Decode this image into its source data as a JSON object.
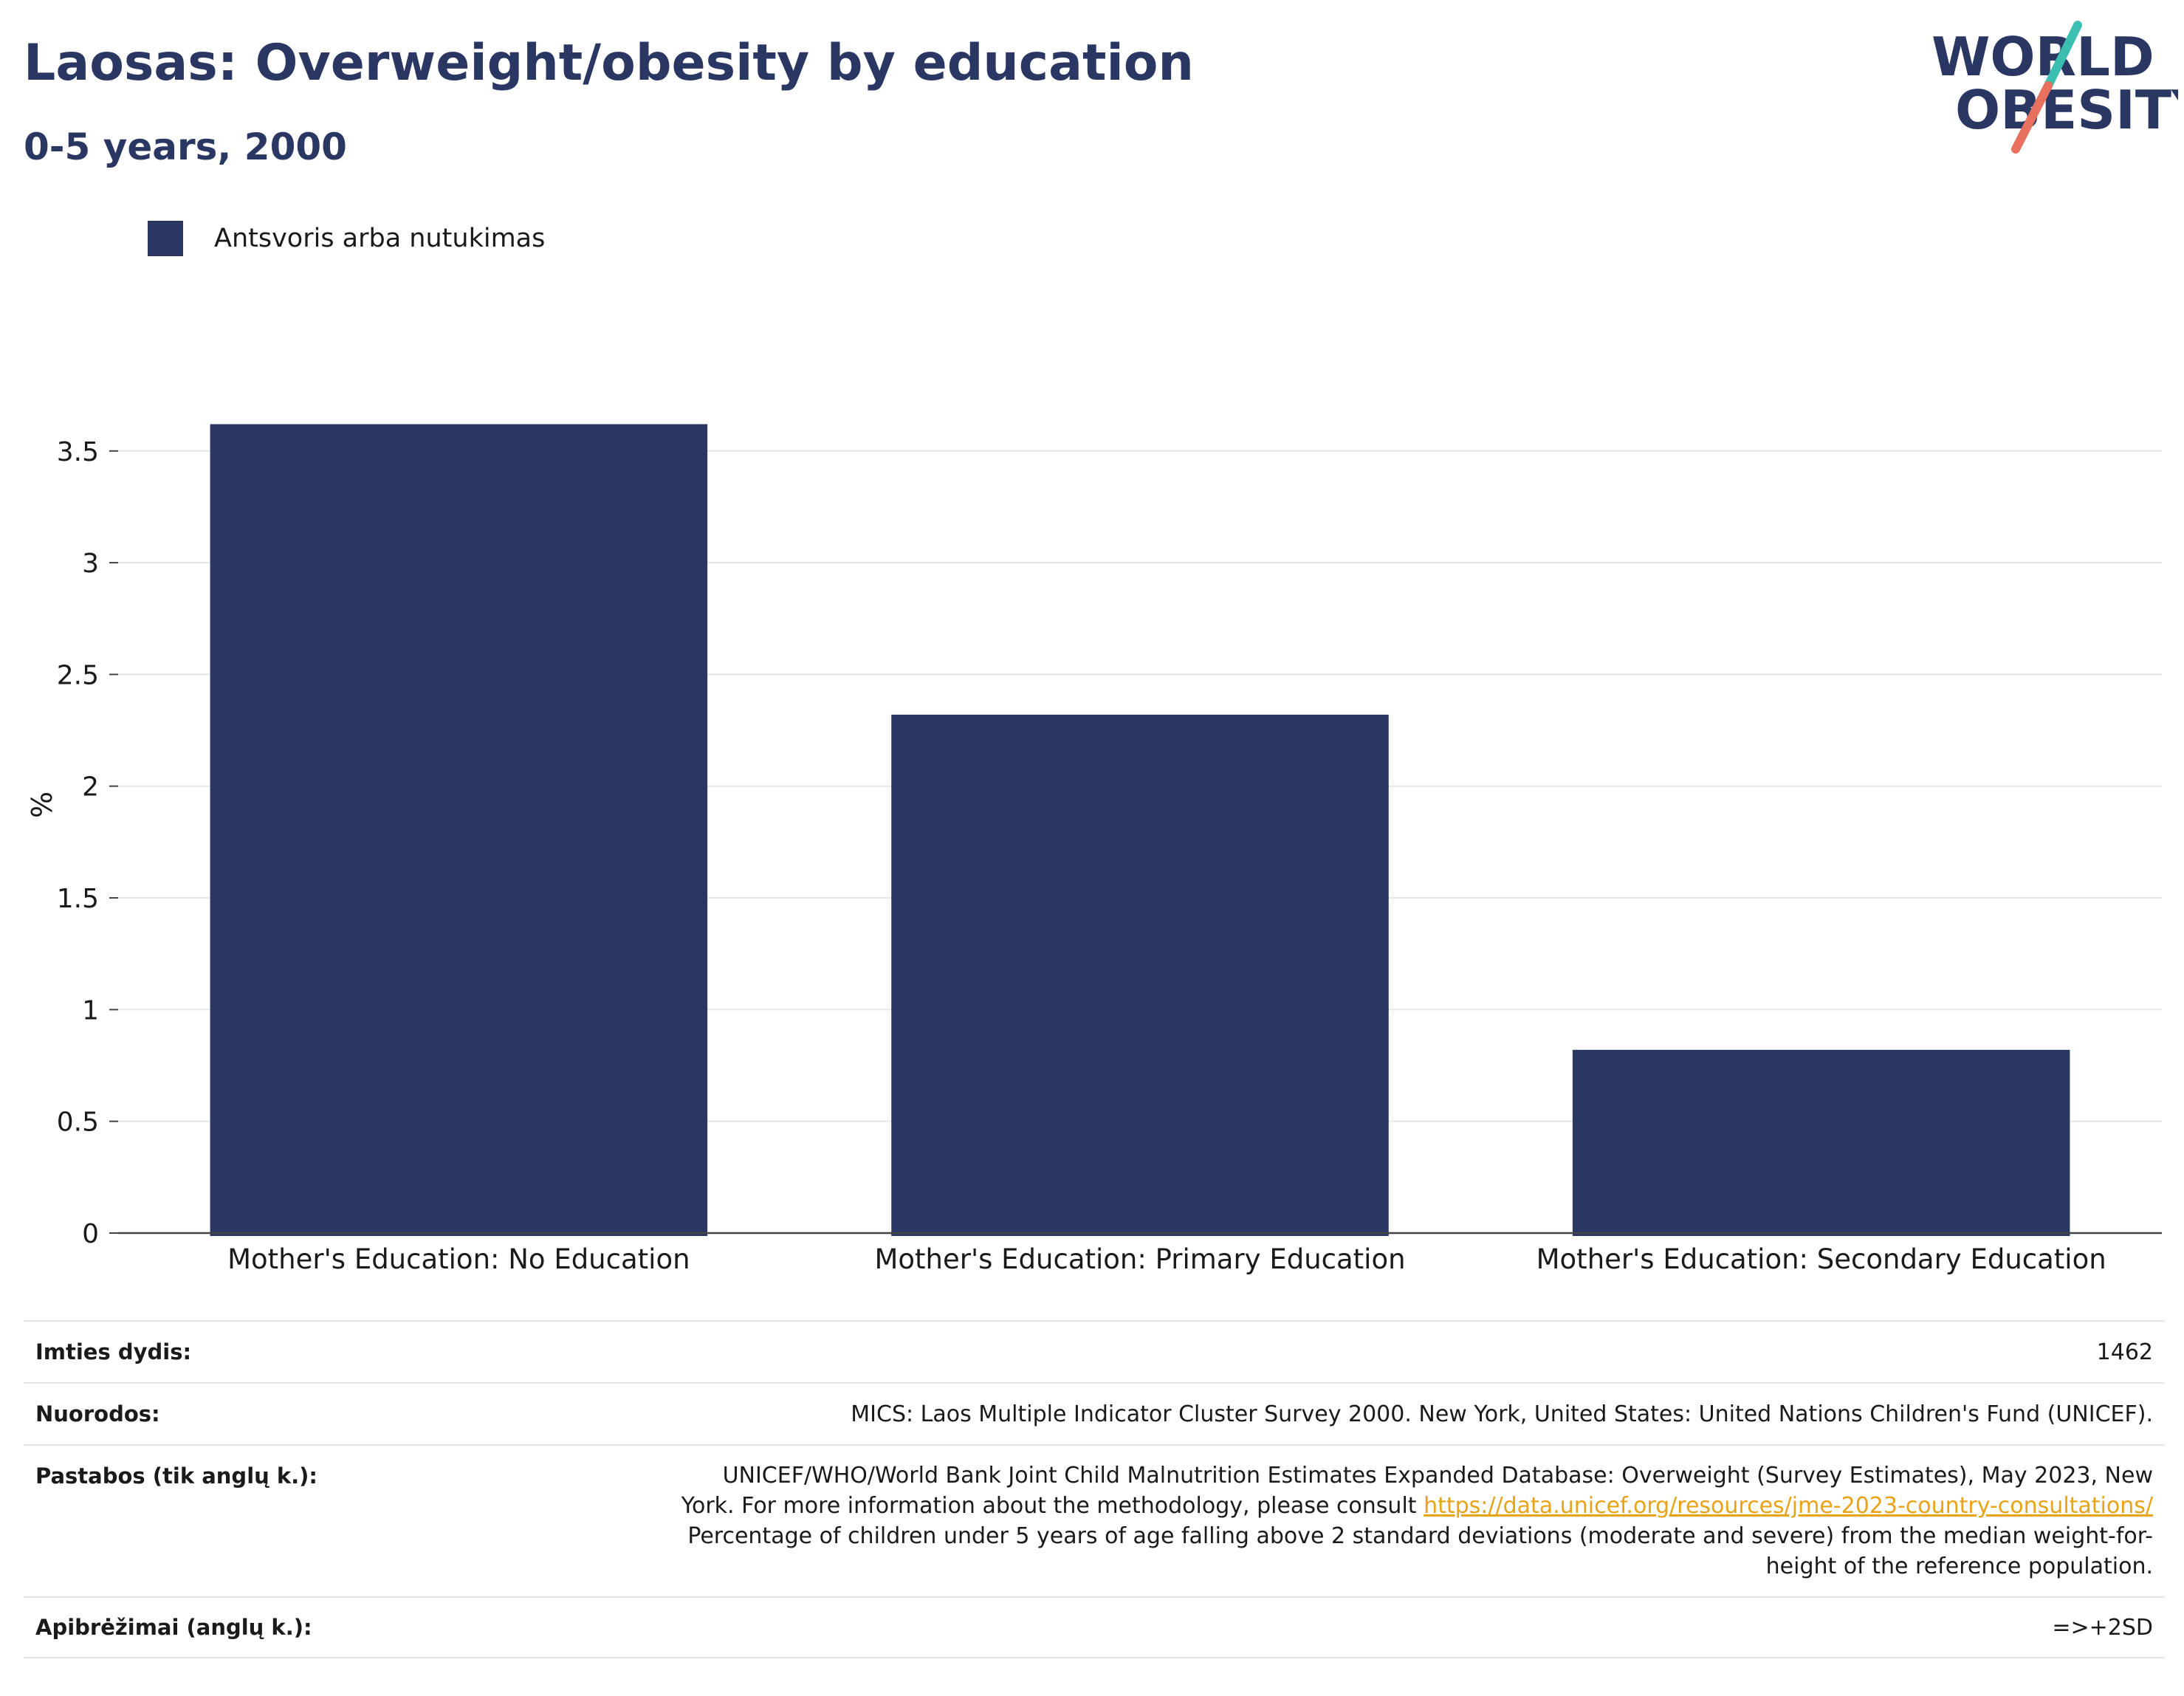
{
  "header": {
    "title": "Laosas: Overweight/obesity by education",
    "subtitle": "0-5 years, 2000"
  },
  "logo": {
    "line1": "WORLD",
    "line2": "OBESITY",
    "colors": {
      "text": "#2a3763",
      "slash_top": "#3bbfb2",
      "slash_bottom": "#e8705f"
    }
  },
  "legend": {
    "label": "Antsvoris arba nutukimas",
    "color": "#2a3763"
  },
  "chart_data": {
    "type": "bar",
    "categories": [
      "Mother's Education: No Education",
      "Mother's Education: Primary Education",
      "Mother's Education: Secondary Education"
    ],
    "series": [
      {
        "name": "Antsvoris arba nutukimas",
        "values": [
          3.62,
          2.32,
          0.82
        ],
        "color": "#2a3763"
      }
    ],
    "ylabel": "%",
    "ylim": [
      0,
      3.8
    ],
    "yticks": [
      0,
      0.5,
      1,
      1.5,
      2,
      2.5,
      3,
      3.5
    ],
    "ytick_labels": [
      "0",
      "0.5",
      "1",
      "1.5",
      "2",
      "2.5",
      "3",
      "3.5"
    ],
    "grid": true,
    "legend_position": "top-left"
  },
  "info": {
    "sample_size": {
      "label": "Imties dydis:",
      "value": "1462"
    },
    "references": {
      "label": "Nuorodos:",
      "value": "MICS: Laos Multiple Indicator Cluster Survey 2000. New York, United States: United Nations Children's Fund (UNICEF)."
    },
    "notes": {
      "label": "Pastabos (tik anglų k.):",
      "line1": "UNICEF/WHO/World Bank Joint Child Malnutrition Estimates Expanded Database: Overweight (Survey Estimates), May 2023, New",
      "line2_prefix": "York. For more information about the methodology, please consult ",
      "link": "https://data.unicef.org/resources/jme-2023-country-consultations/",
      "line3": "Percentage of children under 5 years of age falling above 2 standard deviations (moderate and severe) from the median weight-for-",
      "line4": "height of the reference population."
    },
    "definitions": {
      "label": "Apibrėžimai (anglų k.):",
      "value": "=>+2SD"
    }
  }
}
